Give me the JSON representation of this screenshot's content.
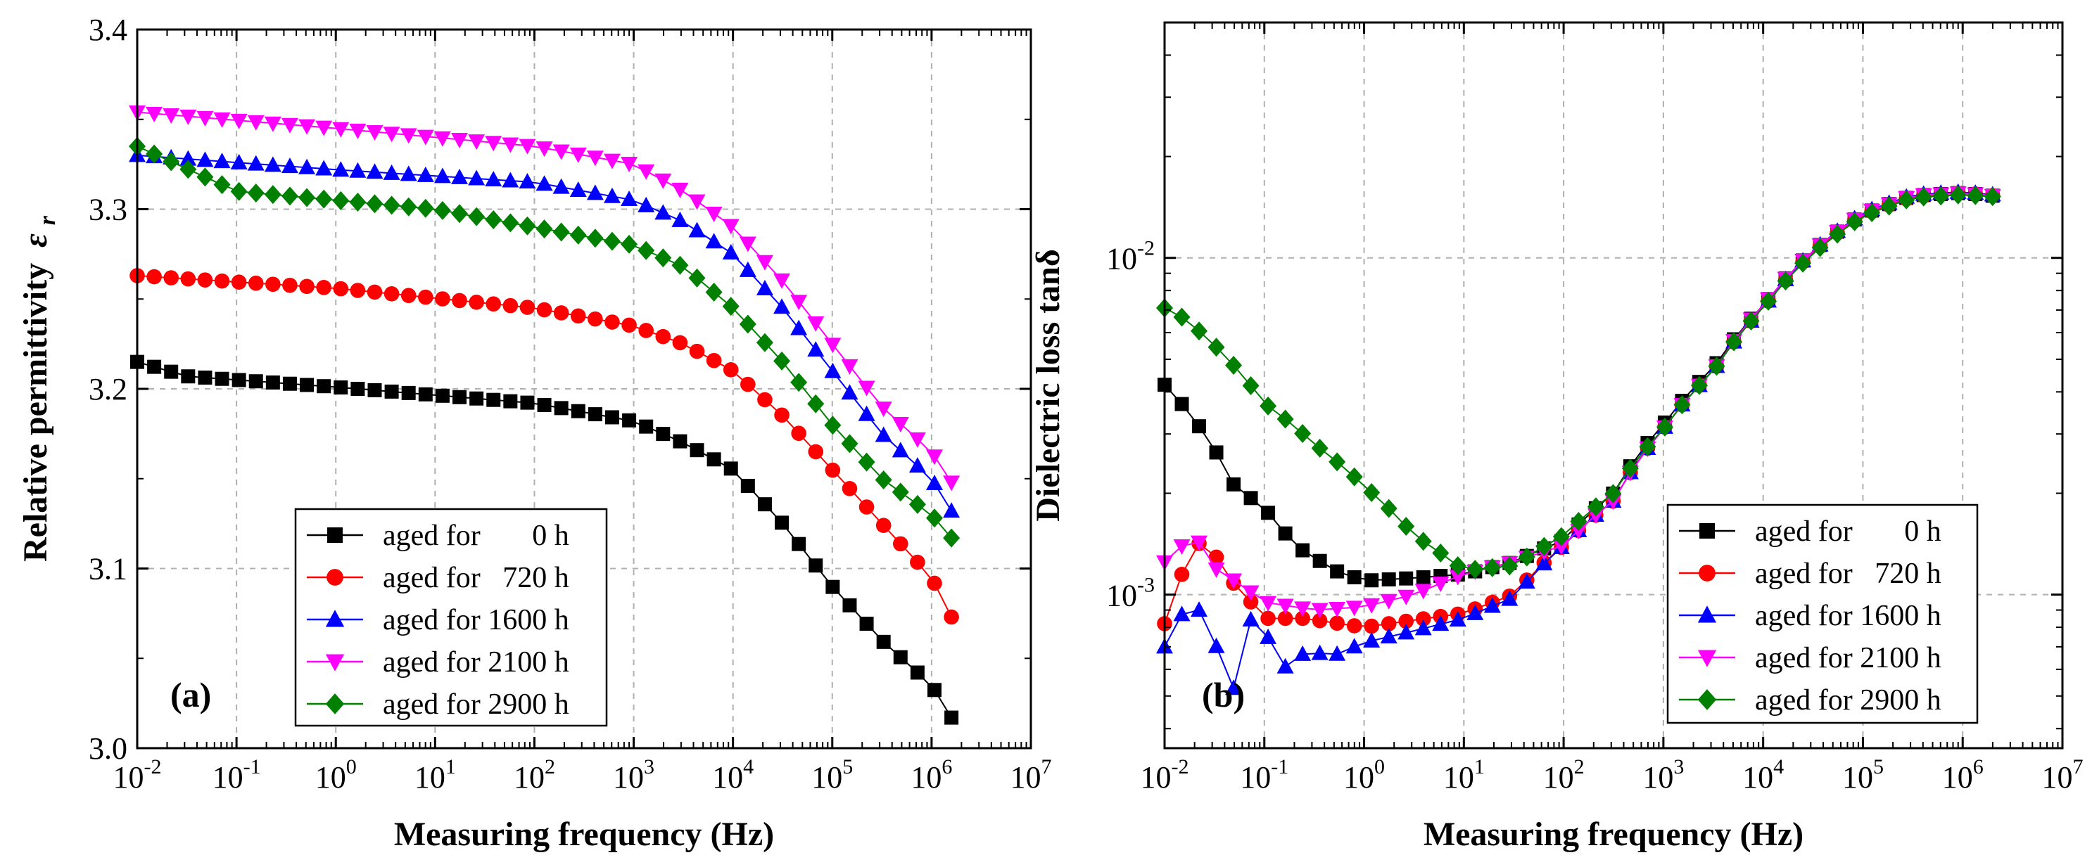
{
  "series_meta": [
    {
      "key": "s0",
      "label": "aged for       0 h",
      "color": "#000000",
      "marker": "square"
    },
    {
      "key": "s720",
      "label": "aged for   720 h",
      "color": "#ff0000",
      "marker": "circle"
    },
    {
      "key": "s1600",
      "label": "aged for 1600 h",
      "color": "#0000ff",
      "marker": "triangle-up"
    },
    {
      "key": "s2100",
      "label": "aged for 2100 h",
      "color": "#ff00ff",
      "marker": "triangle-down"
    },
    {
      "key": "s2900",
      "label": "aged for 2900 h",
      "color": "#008000",
      "marker": "diamond"
    }
  ],
  "chart_data": [
    {
      "panel": "(a)",
      "type": "scatter",
      "xlabel": "Measuring frequency (Hz)",
      "ylabel": "Relative permittivity",
      "ylabel_symbol": "ε",
      "ylabel_subscript": "r",
      "xscale": "log",
      "yscale": "linear",
      "xlim": [
        0.01,
        10000000
      ],
      "ylim": [
        3.0,
        3.4
      ],
      "x_ticks": [
        {
          "base": "10",
          "exp": "-2"
        },
        {
          "base": "10",
          "exp": "-1"
        },
        {
          "base": "10",
          "exp": "0"
        },
        {
          "base": "10",
          "exp": "1"
        },
        {
          "base": "10",
          "exp": "2"
        },
        {
          "base": "10",
          "exp": "3"
        },
        {
          "base": "10",
          "exp": "4"
        },
        {
          "base": "10",
          "exp": "5"
        },
        {
          "base": "10",
          "exp": "6"
        },
        {
          "base": "10",
          "exp": "7"
        }
      ],
      "y_ticks": [
        "3.0",
        "3.1",
        "3.2",
        "3.3",
        "3.4"
      ],
      "legend_position": "bottom-center",
      "grid": true,
      "series": [
        {
          "key": "s0",
          "anchors": [
            [
              -2,
              3.215
            ],
            [
              -1.5,
              3.207
            ],
            [
              0,
              3.201
            ],
            [
              2,
              3.192
            ],
            [
              3,
              3.182
            ],
            [
              3.5,
              3.17
            ],
            [
              4,
              3.155
            ],
            [
              4.5,
              3.125
            ],
            [
              5,
              3.09
            ],
            [
              5.5,
              3.06
            ],
            [
              6,
              3.035
            ],
            [
              6.2,
              3.017
            ]
          ]
        },
        {
          "key": "s720",
          "anchors": [
            [
              -2,
              3.263
            ],
            [
              0,
              3.256
            ],
            [
              2,
              3.245
            ],
            [
              3,
              3.235
            ],
            [
              3.5,
              3.225
            ],
            [
              4,
              3.21
            ],
            [
              4.5,
              3.185
            ],
            [
              5,
              3.155
            ],
            [
              5.5,
              3.125
            ],
            [
              6,
              3.095
            ],
            [
              6.2,
              3.073
            ]
          ]
        },
        {
          "key": "s1600",
          "anchors": [
            [
              -2,
              3.33
            ],
            [
              0,
              3.322
            ],
            [
              2,
              3.315
            ],
            [
              3,
              3.305
            ],
            [
              3.5,
              3.293
            ],
            [
              4,
              3.275
            ],
            [
              4.5,
              3.245
            ],
            [
              5,
              3.21
            ],
            [
              5.5,
              3.175
            ],
            [
              6,
              3.15
            ],
            [
              6.2,
              3.132
            ]
          ]
        },
        {
          "key": "s2100",
          "anchors": [
            [
              -2,
              3.354
            ],
            [
              0,
              3.345
            ],
            [
              2,
              3.335
            ],
            [
              3,
              3.325
            ],
            [
              3.5,
              3.31
            ],
            [
              4,
              3.29
            ],
            [
              4.5,
              3.26
            ],
            [
              5,
              3.225
            ],
            [
              5.5,
              3.19
            ],
            [
              6,
              3.165
            ],
            [
              6.2,
              3.148
            ]
          ]
        },
        {
          "key": "s2900",
          "anchors": [
            [
              -2,
              3.335
            ],
            [
              -1,
              3.31
            ],
            [
              0,
              3.305
            ],
            [
              1,
              3.3
            ],
            [
              2,
              3.29
            ],
            [
              3,
              3.28
            ],
            [
              3.5,
              3.268
            ],
            [
              4,
              3.245
            ],
            [
              4.5,
              3.215
            ],
            [
              5,
              3.18
            ],
            [
              5.5,
              3.15
            ],
            [
              6,
              3.13
            ],
            [
              6.2,
              3.117
            ]
          ]
        }
      ]
    },
    {
      "panel": "(b)",
      "type": "scatter",
      "xlabel": "Measuring frequency (Hz)",
      "ylabel": "Dielectric loss tanδ",
      "xscale": "log",
      "yscale": "log",
      "xlim": [
        0.01,
        10000000
      ],
      "ylim": [
        0.00035,
        0.05
      ],
      "x_ticks": [
        {
          "base": "10",
          "exp": "-2"
        },
        {
          "base": "10",
          "exp": "-1"
        },
        {
          "base": "10",
          "exp": "0"
        },
        {
          "base": "10",
          "exp": "1"
        },
        {
          "base": "10",
          "exp": "2"
        },
        {
          "base": "10",
          "exp": "3"
        },
        {
          "base": "10",
          "exp": "4"
        },
        {
          "base": "10",
          "exp": "5"
        },
        {
          "base": "10",
          "exp": "6"
        },
        {
          "base": "10",
          "exp": "7"
        }
      ],
      "y_ticks": [
        {
          "base": "10",
          "exp": "-3",
          "value": 0.001
        },
        {
          "base": "10",
          "exp": "-2",
          "value": 0.01
        }
      ],
      "legend_position": "bottom-right",
      "grid": true,
      "series": [
        {
          "key": "s0",
          "anchors": [
            [
              -2,
              0.0042
            ],
            [
              -1.7,
              0.0033
            ],
            [
              -1.3,
              0.0021
            ],
            [
              -1,
              0.0018
            ],
            [
              -0.7,
              0.0014
            ],
            [
              -0.3,
              0.00118
            ],
            [
              0,
              0.0011
            ],
            [
              0.5,
              0.00112
            ],
            [
              1,
              0.00115
            ],
            [
              1.5,
              0.00125
            ],
            [
              2,
              0.00145
            ],
            [
              2.5,
              0.002
            ],
            [
              3,
              0.0032
            ],
            [
              3.5,
              0.0047
            ],
            [
              4,
              0.0072
            ],
            [
              4.5,
              0.0105
            ],
            [
              5,
              0.0135
            ],
            [
              5.5,
              0.0153
            ],
            [
              6,
              0.0156
            ],
            [
              6.3,
              0.0153
            ]
          ]
        },
        {
          "key": "s720",
          "anchors": [
            [
              -2,
              0.00082
            ],
            [
              -1.8,
              0.0012
            ],
            [
              -1.6,
              0.0015
            ],
            [
              -1.4,
              0.00115
            ],
            [
              -1.2,
              0.001
            ],
            [
              -1,
              0.00085
            ],
            [
              -0.6,
              0.00085
            ],
            [
              0,
              0.0008
            ],
            [
              1,
              0.00088
            ],
            [
              1.5,
              0.001
            ],
            [
              2,
              0.0014
            ],
            [
              2.5,
              0.0019
            ],
            [
              3,
              0.0031
            ],
            [
              3.5,
              0.0046
            ],
            [
              4,
              0.0071
            ],
            [
              4.5,
              0.0104
            ],
            [
              5,
              0.0134
            ],
            [
              5.5,
              0.0152
            ],
            [
              6,
              0.0156
            ],
            [
              6.3,
              0.0153
            ]
          ]
        },
        {
          "key": "s1600",
          "anchors": [
            [
              -2,
              0.0007
            ],
            [
              -1.8,
              0.0009
            ],
            [
              -1.6,
              0.0009
            ],
            [
              -1.45,
              0.00065
            ],
            [
              -1.3,
              0.00052
            ],
            [
              -1.2,
              0.00095
            ],
            [
              -1.05,
              0.0007
            ],
            [
              -0.9,
              0.00078
            ],
            [
              -0.75,
              0.00055
            ],
            [
              -0.6,
              0.00068
            ],
            [
              -0.3,
              0.00066
            ],
            [
              0,
              0.00072
            ],
            [
              0.5,
              0.00078
            ],
            [
              1,
              0.00085
            ],
            [
              1.5,
              0.00098
            ],
            [
              2,
              0.0014
            ],
            [
              2.5,
              0.0019
            ],
            [
              3,
              0.0031
            ],
            [
              3.5,
              0.0046
            ],
            [
              4,
              0.0071
            ],
            [
              4.5,
              0.0105
            ],
            [
              5,
              0.0136
            ],
            [
              5.5,
              0.0154
            ],
            [
              6,
              0.0157
            ],
            [
              6.3,
              0.0154
            ]
          ]
        },
        {
          "key": "s2100",
          "anchors": [
            [
              -2,
              0.00125
            ],
            [
              -1.7,
              0.0015
            ],
            [
              -1.5,
              0.0012
            ],
            [
              -1.3,
              0.0011
            ],
            [
              -1,
              0.00095
            ],
            [
              -0.5,
              0.0009
            ],
            [
              0,
              0.00092
            ],
            [
              0.5,
              0.001
            ],
            [
              1,
              0.00115
            ],
            [
              1.5,
              0.00125
            ],
            [
              2,
              0.0014
            ],
            [
              2.5,
              0.0019
            ],
            [
              3,
              0.0031
            ],
            [
              3.5,
              0.0046
            ],
            [
              4,
              0.0072
            ],
            [
              4.5,
              0.0105
            ],
            [
              5,
              0.0135
            ],
            [
              5.5,
              0.0153
            ],
            [
              6,
              0.0156
            ],
            [
              6.3,
              0.0153
            ]
          ]
        },
        {
          "key": "s2900",
          "anchors": [
            [
              -2,
              0.0071
            ],
            [
              -1.8,
              0.0066
            ],
            [
              -1.5,
              0.0055
            ],
            [
              -1.2,
              0.0044
            ],
            [
              -1,
              0.0037
            ],
            [
              -0.5,
              0.0028
            ],
            [
              0,
              0.0021
            ],
            [
              0.5,
              0.0015
            ],
            [
              1,
              0.00118
            ],
            [
              1.5,
              0.00122
            ],
            [
              2,
              0.0015
            ],
            [
              2.5,
              0.002
            ],
            [
              3,
              0.0031
            ],
            [
              3.5,
              0.0046
            ],
            [
              4,
              0.0071
            ],
            [
              4.5,
              0.0103
            ],
            [
              5,
              0.0133
            ],
            [
              5.5,
              0.0151
            ],
            [
              6,
              0.0154
            ],
            [
              6.3,
              0.0152
            ]
          ]
        }
      ]
    }
  ]
}
